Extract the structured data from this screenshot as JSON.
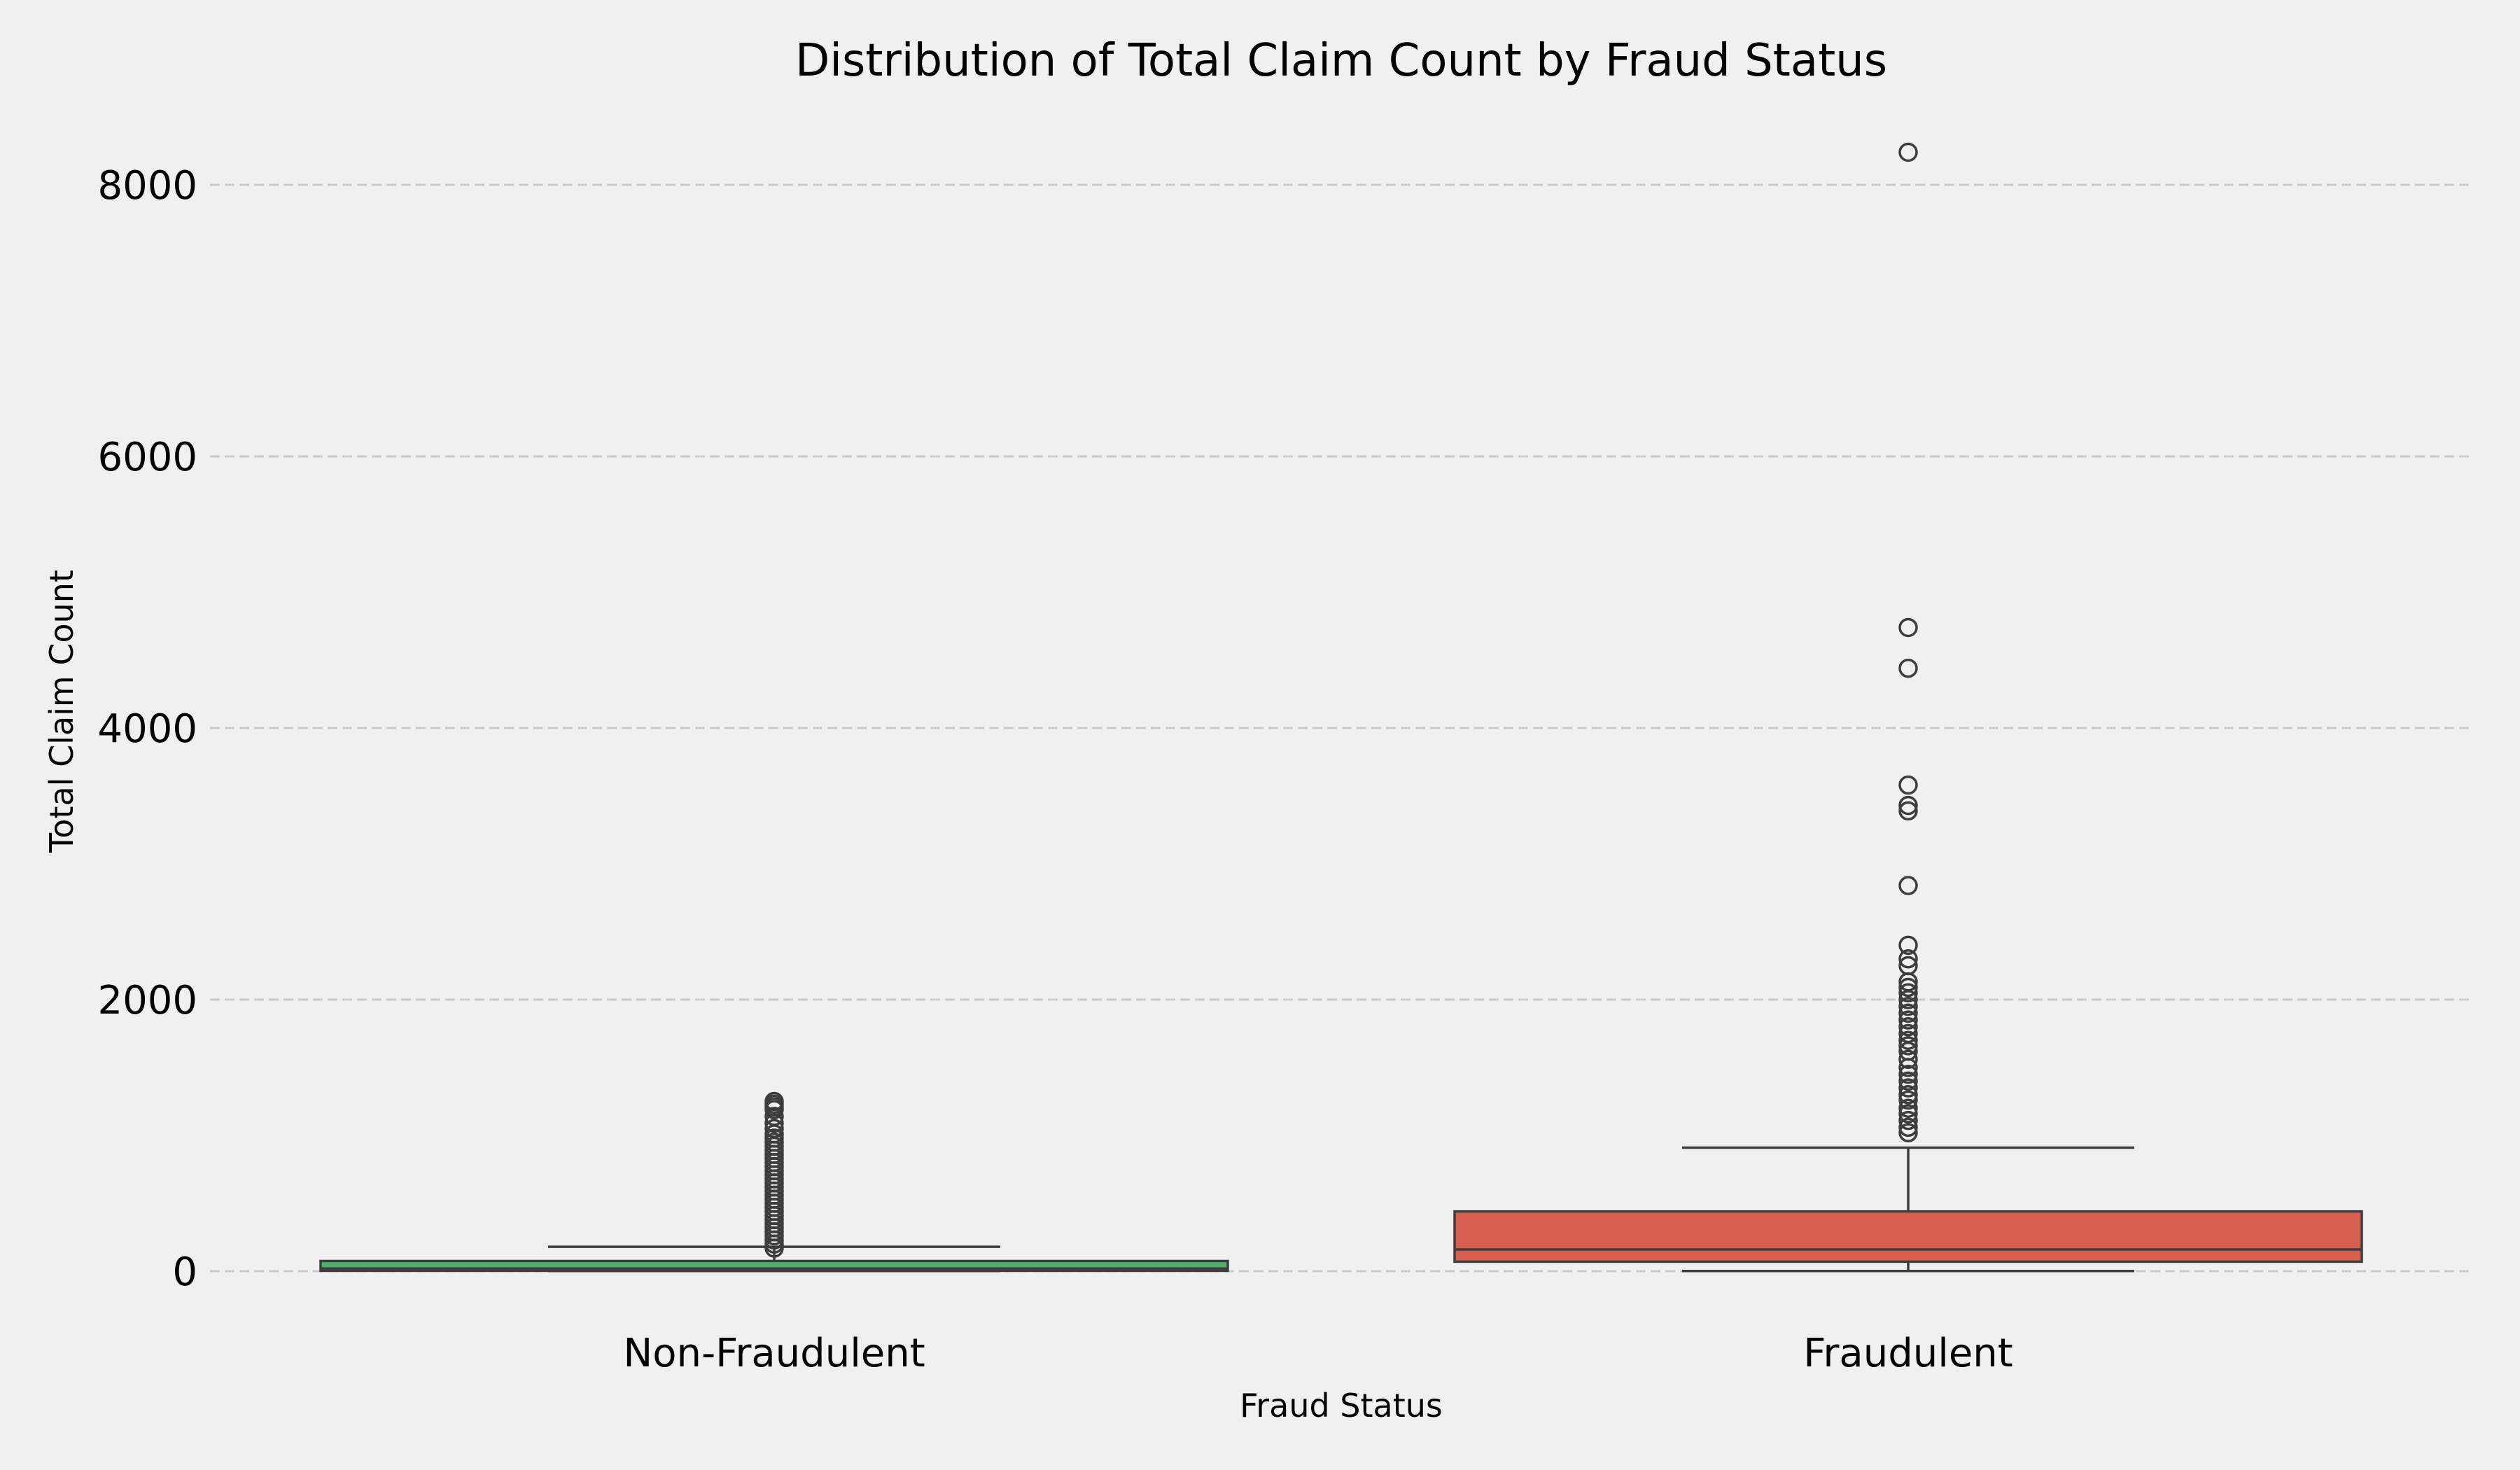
{
  "chart_data": {
    "type": "box",
    "title": "Distribution of Total Claim Count by Fraud Status",
    "xlabel": "Fraud Status",
    "ylabel": "Total Claim Count",
    "ylim": [
      -250,
      8400
    ],
    "yticks": [
      0,
      2000,
      4000,
      6000,
      8000
    ],
    "grid": "y-dashed",
    "categories": [
      "Non-Fraudulent",
      "Fraudulent"
    ],
    "colors": {
      "Non-Fraudulent": "#4fb16f",
      "Fraudulent": "#d65f50",
      "background": "#f0f0f0",
      "grid": "#cbcbcb",
      "lines": "#3d3d3d"
    },
    "boxes": [
      {
        "category": "Non-Fraudulent",
        "whisker_low": 1,
        "q1": 3,
        "median": 20,
        "q3": 75,
        "whisker_high": 180,
        "outliers": [
          170,
          200,
          230,
          260,
          290,
          320,
          350,
          380,
          410,
          440,
          470,
          500,
          530,
          560,
          590,
          620,
          650,
          680,
          710,
          740,
          770,
          800,
          830,
          860,
          890,
          920,
          950,
          980,
          1010,
          1050,
          1090,
          1140,
          1190,
          1210,
          1230,
          1250
        ]
      },
      {
        "category": "Fraudulent",
        "whisker_low": 1,
        "q1": 70,
        "median": 160,
        "q3": 440,
        "whisker_high": 910,
        "outliers": [
          1020,
          1060,
          1110,
          1160,
          1200,
          1260,
          1300,
          1350,
          1400,
          1450,
          1500,
          1560,
          1620,
          1660,
          1700,
          1750,
          1800,
          1850,
          1900,
          1950,
          2000,
          2050,
          2090,
          2130,
          2250,
          2300,
          2400,
          2840,
          3390,
          3430,
          3580,
          4440,
          4740,
          8240
        ]
      }
    ]
  }
}
